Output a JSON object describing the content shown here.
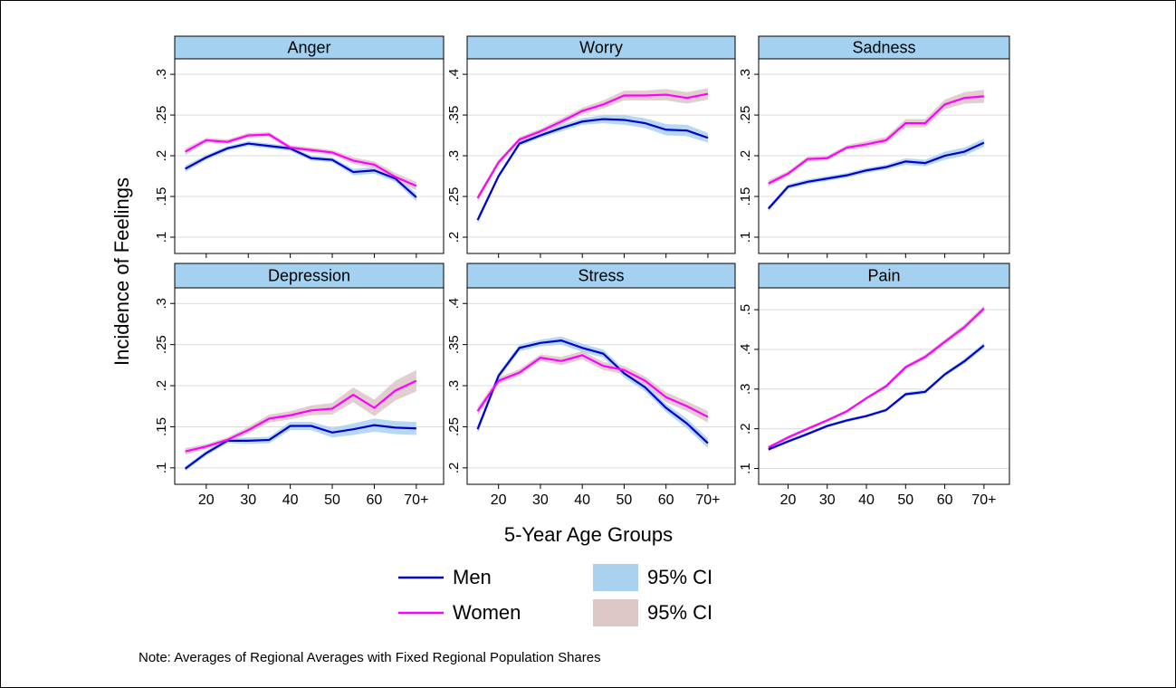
{
  "chart_data": [
    {
      "type": "line",
      "title": "Anger",
      "x": [
        15,
        20,
        25,
        30,
        35,
        40,
        45,
        50,
        55,
        60,
        65,
        70
      ],
      "xlim": [
        12.5,
        76.5
      ],
      "xticks": [
        20,
        30,
        40,
        50,
        60,
        {
          "value": 70,
          "label": "70+"
        }
      ],
      "ylim": [
        0.08,
        0.319
      ],
      "yticks": [
        {
          "value": 0.1,
          "label": ".1"
        },
        {
          "value": 0.15,
          "label": ".15"
        },
        {
          "value": 0.2,
          "label": ".2"
        },
        {
          "value": 0.25,
          "label": ".25"
        },
        {
          "value": 0.3,
          "label": ".3"
        }
      ],
      "series": [
        {
          "name": "Men",
          "color": "#0000cc",
          "values": [
            0.184,
            0.198,
            0.209,
            0.215,
            0.212,
            0.209,
            0.197,
            0.195,
            0.18,
            0.182,
            0.172,
            0.149
          ],
          "ci": {
            "name": "95% CI",
            "color": "#a9d2ee",
            "errors": [
              0.004,
              0.003,
              0.003,
              0.003,
              0.003,
              0.003,
              0.003,
              0.003,
              0.004,
              0.004,
              0.004,
              0.005
            ]
          }
        },
        {
          "name": "Women",
          "color": "#ff00ff",
          "values": [
            0.205,
            0.219,
            0.217,
            0.225,
            0.226,
            0.21,
            0.207,
            0.204,
            0.194,
            0.189,
            0.174,
            0.163
          ],
          "ci": {
            "name": "95% CI",
            "color": "#dcc6c6",
            "errors": [
              0.004,
              0.003,
              0.003,
              0.003,
              0.003,
              0.003,
              0.003,
              0.003,
              0.004,
              0.004,
              0.005,
              0.005
            ]
          }
        }
      ]
    },
    {
      "type": "line",
      "title": "Worry",
      "x": [
        15,
        20,
        25,
        30,
        35,
        40,
        45,
        50,
        55,
        60,
        65,
        70
      ],
      "xlim": [
        12.5,
        76.5
      ],
      "xticks": [
        20,
        30,
        40,
        50,
        60,
        {
          "value": 70,
          "label": "70+"
        }
      ],
      "ylim": [
        0.18,
        0.419
      ],
      "yticks": [
        {
          "value": 0.2,
          "label": ".2"
        },
        {
          "value": 0.25,
          "label": ".25"
        },
        {
          "value": 0.3,
          "label": ".3"
        },
        {
          "value": 0.35,
          "label": ".35"
        },
        {
          "value": 0.4,
          "label": ".4"
        }
      ],
      "series": [
        {
          "name": "Men",
          "color": "#0000cc",
          "values": [
            0.221,
            0.275,
            0.315,
            0.325,
            0.334,
            0.342,
            0.345,
            0.344,
            0.34,
            0.332,
            0.331,
            0.322
          ],
          "ci": {
            "name": "95% CI",
            "color": "#a9d2ee",
            "errors": [
              0.004,
              0.003,
              0.003,
              0.003,
              0.004,
              0.004,
              0.005,
              0.006,
              0.006,
              0.007,
              0.007,
              0.006
            ]
          }
        },
        {
          "name": "Women",
          "color": "#ff00ff",
          "values": [
            0.248,
            0.292,
            0.32,
            0.33,
            0.342,
            0.355,
            0.363,
            0.374,
            0.374,
            0.375,
            0.371,
            0.376
          ],
          "ci": {
            "name": "95% CI",
            "color": "#dcc6c6",
            "errors": [
              0.004,
              0.003,
              0.003,
              0.003,
              0.004,
              0.004,
              0.005,
              0.006,
              0.006,
              0.007,
              0.007,
              0.007
            ]
          }
        }
      ]
    },
    {
      "type": "line",
      "title": "Sadness",
      "x": [
        15,
        20,
        25,
        30,
        35,
        40,
        45,
        50,
        55,
        60,
        65,
        70
      ],
      "xlim": [
        12.5,
        76.5
      ],
      "xticks": [
        20,
        30,
        40,
        50,
        60,
        {
          "value": 70,
          "label": "70+"
        }
      ],
      "ylim": [
        0.08,
        0.319
      ],
      "yticks": [
        {
          "value": 0.1,
          "label": ".1"
        },
        {
          "value": 0.15,
          "label": ".15"
        },
        {
          "value": 0.2,
          "label": ".2"
        },
        {
          "value": 0.25,
          "label": ".25"
        },
        {
          "value": 0.3,
          "label": ".3"
        }
      ],
      "series": [
        {
          "name": "Men",
          "color": "#0000cc",
          "values": [
            0.135,
            0.162,
            0.168,
            0.172,
            0.176,
            0.182,
            0.186,
            0.193,
            0.191,
            0.2,
            0.205,
            0.216
          ],
          "ci": {
            "name": "95% CI",
            "color": "#a9d2ee",
            "errors": [
              0.003,
              0.003,
              0.003,
              0.003,
              0.003,
              0.003,
              0.003,
              0.004,
              0.004,
              0.005,
              0.005,
              0.005
            ]
          }
        },
        {
          "name": "Women",
          "color": "#ff00ff",
          "values": [
            0.166,
            0.178,
            0.196,
            0.197,
            0.21,
            0.214,
            0.219,
            0.24,
            0.24,
            0.263,
            0.271,
            0.273
          ],
          "ci": {
            "name": "95% CI",
            "color": "#dcc6c6",
            "errors": [
              0.004,
              0.003,
              0.003,
              0.003,
              0.003,
              0.004,
              0.004,
              0.005,
              0.005,
              0.006,
              0.007,
              0.008
            ]
          }
        }
      ]
    },
    {
      "type": "line",
      "title": "Depression",
      "x": [
        15,
        20,
        25,
        30,
        35,
        40,
        45,
        50,
        55,
        60,
        65,
        70
      ],
      "xlim": [
        12.5,
        76.5
      ],
      "xticks": [
        20,
        30,
        40,
        50,
        60,
        {
          "value": 70,
          "label": "70+"
        }
      ],
      "ylim": [
        0.08,
        0.319
      ],
      "yticks": [
        {
          "value": 0.1,
          "label": ".1"
        },
        {
          "value": 0.15,
          "label": ".15"
        },
        {
          "value": 0.2,
          "label": ".2"
        },
        {
          "value": 0.25,
          "label": ".25"
        },
        {
          "value": 0.3,
          "label": ".3"
        }
      ],
      "series": [
        {
          "name": "Men",
          "color": "#0000cc",
          "values": [
            0.099,
            0.118,
            0.133,
            0.133,
            0.134,
            0.151,
            0.151,
            0.143,
            0.147,
            0.152,
            0.149,
            0.148
          ],
          "ci": {
            "name": "95% CI",
            "color": "#a9d2ee",
            "errors": [
              0.003,
              0.003,
              0.003,
              0.004,
              0.004,
              0.005,
              0.005,
              0.006,
              0.007,
              0.008,
              0.008,
              0.008
            ]
          }
        },
        {
          "name": "Women",
          "color": "#ff00ff",
          "values": [
            0.12,
            0.126,
            0.134,
            0.146,
            0.16,
            0.164,
            0.17,
            0.172,
            0.189,
            0.173,
            0.194,
            0.206
          ],
          "ci": {
            "name": "95% CI",
            "color": "#dcc6c6",
            "errors": [
              0.004,
              0.003,
              0.003,
              0.004,
              0.005,
              0.005,
              0.006,
              0.007,
              0.009,
              0.01,
              0.012,
              0.013
            ]
          }
        }
      ]
    },
    {
      "type": "line",
      "title": "Stress",
      "x": [
        15,
        20,
        25,
        30,
        35,
        40,
        45,
        50,
        55,
        60,
        65,
        70
      ],
      "xlim": [
        12.5,
        76.5
      ],
      "xticks": [
        20,
        30,
        40,
        50,
        60,
        {
          "value": 70,
          "label": "70+"
        }
      ],
      "ylim": [
        0.18,
        0.419
      ],
      "yticks": [
        {
          "value": 0.2,
          "label": ".2"
        },
        {
          "value": 0.25,
          "label": ".25"
        },
        {
          "value": 0.3,
          "label": ".3"
        },
        {
          "value": 0.35,
          "label": ".35"
        },
        {
          "value": 0.4,
          "label": ".4"
        }
      ],
      "series": [
        {
          "name": "Men",
          "color": "#0000cc",
          "values": [
            0.247,
            0.312,
            0.346,
            0.352,
            0.355,
            0.346,
            0.339,
            0.315,
            0.298,
            0.273,
            0.254,
            0.23
          ],
          "ci": {
            "name": "95% CI",
            "color": "#a9d2ee",
            "errors": [
              0.005,
              0.004,
              0.004,
              0.004,
              0.005,
              0.005,
              0.005,
              0.005,
              0.005,
              0.005,
              0.006,
              0.006
            ]
          }
        },
        {
          "name": "Women",
          "color": "#ff00ff",
          "values": [
            0.269,
            0.306,
            0.316,
            0.334,
            0.33,
            0.337,
            0.324,
            0.319,
            0.306,
            0.286,
            0.275,
            0.262
          ],
          "ci": {
            "name": "95% CI",
            "color": "#dcc6c6",
            "errors": [
              0.005,
              0.004,
              0.004,
              0.004,
              0.005,
              0.005,
              0.005,
              0.005,
              0.005,
              0.006,
              0.006,
              0.007
            ]
          }
        }
      ]
    },
    {
      "type": "line",
      "title": "Pain",
      "x": [
        15,
        20,
        25,
        30,
        35,
        40,
        45,
        50,
        55,
        60,
        65,
        70
      ],
      "xlim": [
        12.5,
        76.5
      ],
      "xticks": [
        20,
        30,
        40,
        50,
        60,
        {
          "value": 70,
          "label": "70+"
        }
      ],
      "ylim": [
        0.06,
        0.555
      ],
      "yticks": [
        {
          "value": 0.1,
          "label": ".1"
        },
        {
          "value": 0.2,
          "label": ".2"
        },
        {
          "value": 0.3,
          "label": ".3"
        },
        {
          "value": 0.4,
          "label": ".4"
        },
        {
          "value": 0.5,
          "label": ".5"
        }
      ],
      "series": [
        {
          "name": "Men",
          "color": "#0000cc",
          "values": [
            0.148,
            0.168,
            0.187,
            0.207,
            0.221,
            0.232,
            0.247,
            0.287,
            0.293,
            0.337,
            0.37,
            0.41
          ],
          "ci": {
            "name": "95% CI",
            "color": "#a9d2ee",
            "errors": [
              0.004,
              0.004,
              0.004,
              0.004,
              0.004,
              0.004,
              0.004,
              0.005,
              0.005,
              0.005,
              0.006,
              0.007
            ]
          }
        },
        {
          "name": "Women",
          "color": "#ff00ff",
          "values": [
            0.153,
            0.178,
            0.2,
            0.221,
            0.244,
            0.277,
            0.307,
            0.355,
            0.381,
            0.419,
            0.456,
            0.503
          ],
          "ci": {
            "name": "95% CI",
            "color": "#dcc6c6",
            "errors": [
              0.004,
              0.004,
              0.004,
              0.004,
              0.004,
              0.004,
              0.005,
              0.005,
              0.006,
              0.006,
              0.007,
              0.008
            ]
          }
        }
      ]
    }
  ],
  "figure": {
    "x_label": "5-Year Age Groups",
    "y_label": "Incidence of Feelings",
    "note": "Note: Averages of Regional Averages with Fixed Regional Population Shares"
  }
}
